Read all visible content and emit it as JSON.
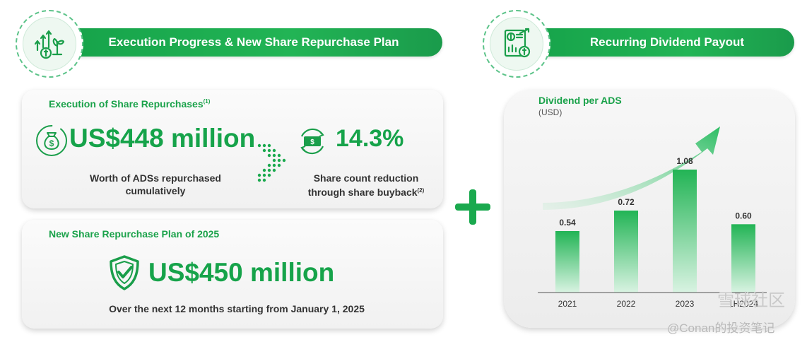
{
  "left_header": {
    "title": "Execution Progress & New Share Repurchase Plan",
    "icon": "growth-coins-icon"
  },
  "right_header": {
    "title": "Recurring Dividend Payout",
    "icon": "dividend-report-icon"
  },
  "execution": {
    "title": "Execution of Share Repurchases",
    "title_note": "(1)",
    "amount": "US$448 million",
    "amount_caption_1": "Worth of ADSs repurchased",
    "amount_caption_2": "cumulatively",
    "amount_icon": "money-bag-icon",
    "reduction": "14.3%",
    "reduction_caption_1": "Share count reduction",
    "reduction_caption_2": "through share buyback",
    "reduction_note": "(2)",
    "reduction_icon": "cash-cycle-icon",
    "arrow_icon": "dotted-chevron-icon"
  },
  "new_plan": {
    "title": "New Share Repurchase Plan of 2025",
    "amount": "US$450 million",
    "caption": "Over the next 12 months starting from January 1, 2025",
    "icon": "shield-check-icon"
  },
  "colors": {
    "brand_green": "#16a34a",
    "bar_top": "#22b455",
    "bar_bottom": "#d9f3e2"
  },
  "chart_data": {
    "type": "bar",
    "title": "Dividend per ADS",
    "unit": "(USD)",
    "categories": [
      "2021",
      "2022",
      "2023",
      "1H2024"
    ],
    "values": [
      0.54,
      0.72,
      1.08,
      0.6
    ],
    "value_labels": [
      "0.54",
      "0.72",
      "1.08",
      "0.60"
    ],
    "ylim": [
      0,
      1.2
    ],
    "grid": false
  },
  "watermarks": {
    "line1": "雪球社区",
    "line2": "@Conan的投资笔记"
  }
}
